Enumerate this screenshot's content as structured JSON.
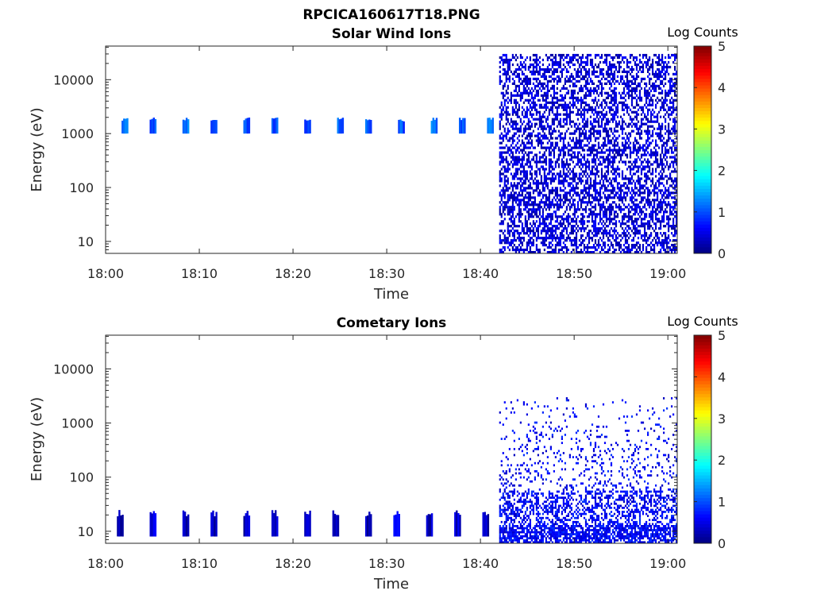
{
  "figure": {
    "title": "RPCICA160617T18.PNG"
  },
  "chart_data": [
    {
      "type": "heatmap",
      "title": "Solar Wind Ions",
      "xlabel": "Time",
      "ylabel": "Energy (eV)",
      "xlim": [
        "18:00",
        "19:01"
      ],
      "ylim": [
        6,
        42000
      ],
      "yscale": "log",
      "x_ticks": [
        "18:00",
        "18:10",
        "18:20",
        "18:30",
        "18:40",
        "18:50",
        "19:00"
      ],
      "y_ticks": [
        "10",
        "100",
        "1000",
        "10000"
      ],
      "colorbar": {
        "label": "Log Counts",
        "range": [
          0,
          5
        ],
        "ticks": [
          "0",
          "1",
          "2",
          "3",
          "4",
          "5"
        ],
        "colormap": "jet"
      },
      "grid": false,
      "features": [
        {
          "kind": "pulse",
          "time": "18:02",
          "energy_eV": [
            1000,
            2000
          ],
          "log_counts": 1.2
        },
        {
          "kind": "pulse",
          "time": "18:05",
          "energy_eV": [
            1000,
            2000
          ],
          "log_counts": 1.0
        },
        {
          "kind": "pulse",
          "time": "18:08.5",
          "energy_eV": [
            1000,
            2000
          ],
          "log_counts": 1.2
        },
        {
          "kind": "pulse",
          "time": "18:11.5",
          "energy_eV": [
            1000,
            2000
          ],
          "log_counts": 1.1
        },
        {
          "kind": "pulse",
          "time": "18:15",
          "energy_eV": [
            1000,
            2000
          ],
          "log_counts": 1.0
        },
        {
          "kind": "pulse",
          "time": "18:18",
          "energy_eV": [
            1000,
            2000
          ],
          "log_counts": 1.0
        },
        {
          "kind": "pulse",
          "time": "18:21.5",
          "energy_eV": [
            1000,
            2000
          ],
          "log_counts": 0.9
        },
        {
          "kind": "pulse",
          "time": "18:25",
          "energy_eV": [
            1000,
            2000
          ],
          "log_counts": 1.1
        },
        {
          "kind": "pulse",
          "time": "18:28",
          "energy_eV": [
            1000,
            2000
          ],
          "log_counts": 1.0
        },
        {
          "kind": "pulse",
          "time": "18:31.5",
          "energy_eV": [
            1000,
            2000
          ],
          "log_counts": 1.0
        },
        {
          "kind": "pulse",
          "time": "18:35",
          "energy_eV": [
            1000,
            2000
          ],
          "log_counts": 1.2
        },
        {
          "kind": "pulse",
          "time": "18:38",
          "energy_eV": [
            1000,
            2000
          ],
          "log_counts": 1.1
        },
        {
          "kind": "pulse",
          "time": "18:41",
          "energy_eV": [
            1000,
            2000
          ],
          "log_counts": 1.1
        },
        {
          "kind": "noise",
          "time": [
            "18:42",
            "19:01"
          ],
          "energy_eV": [
            6,
            30000
          ],
          "log_counts": 0.1
        }
      ]
    },
    {
      "type": "heatmap",
      "title": "Cometary Ions",
      "xlabel": "Time",
      "ylabel": "Energy (eV)",
      "xlim": [
        "18:00",
        "19:01"
      ],
      "ylim": [
        6,
        42000
      ],
      "yscale": "log",
      "x_ticks": [
        "18:00",
        "18:10",
        "18:20",
        "18:30",
        "18:40",
        "18:50",
        "19:00"
      ],
      "y_ticks": [
        "10",
        "100",
        "1000",
        "10000"
      ],
      "colorbar": {
        "label": "Log Counts",
        "range": [
          0,
          5
        ],
        "ticks": [
          "0",
          "1",
          "2",
          "3",
          "4",
          "5"
        ],
        "colormap": "jet"
      },
      "grid": false,
      "features": [
        {
          "kind": "pulse",
          "time": "18:01.5",
          "energy_eV": [
            8,
            25
          ],
          "log_counts": 0.3
        },
        {
          "kind": "pulse",
          "time": "18:05",
          "energy_eV": [
            8,
            25
          ],
          "log_counts": 0.4
        },
        {
          "kind": "pulse",
          "time": "18:08.5",
          "energy_eV": [
            8,
            25
          ],
          "log_counts": 0.3
        },
        {
          "kind": "pulse",
          "time": "18:11.5",
          "energy_eV": [
            8,
            25
          ],
          "log_counts": 0.3
        },
        {
          "kind": "pulse",
          "time": "18:15",
          "energy_eV": [
            8,
            25
          ],
          "log_counts": 0.3
        },
        {
          "kind": "pulse",
          "time": "18:18",
          "energy_eV": [
            8,
            25
          ],
          "log_counts": 0.3
        },
        {
          "kind": "pulse",
          "time": "18:21.5",
          "energy_eV": [
            8,
            25
          ],
          "log_counts": 0.3
        },
        {
          "kind": "pulse",
          "time": "18:24.5",
          "energy_eV": [
            8,
            25
          ],
          "log_counts": 0.4
        },
        {
          "kind": "pulse",
          "time": "18:28",
          "energy_eV": [
            8,
            25
          ],
          "log_counts": 0.3
        },
        {
          "kind": "pulse",
          "time": "18:31",
          "energy_eV": [
            8,
            25
          ],
          "log_counts": 0.5
        },
        {
          "kind": "pulse",
          "time": "18:34.5",
          "energy_eV": [
            8,
            25
          ],
          "log_counts": 0.3
        },
        {
          "kind": "pulse",
          "time": "18:37.5",
          "energy_eV": [
            8,
            25
          ],
          "log_counts": 0.4
        },
        {
          "kind": "pulse",
          "time": "18:40.5",
          "energy_eV": [
            8,
            25
          ],
          "log_counts": 0.3
        },
        {
          "kind": "noise",
          "time": [
            "18:42",
            "19:01"
          ],
          "energy_eV": [
            6,
            3000
          ],
          "log_counts": 0.3
        }
      ]
    }
  ]
}
